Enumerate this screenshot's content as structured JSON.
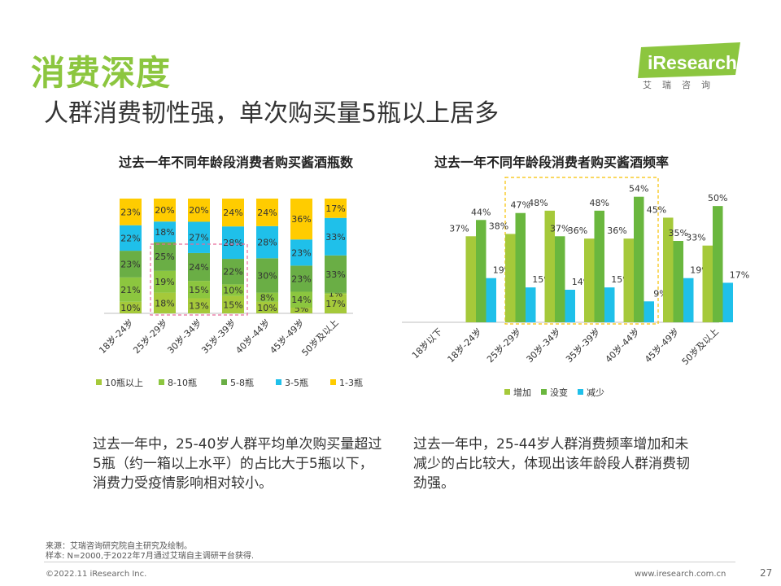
{
  "page": {
    "section_title": "消费深度",
    "headline": "人群消费韧性强，单次购买量5瓶以上居多",
    "logo_text": "iResearch",
    "logo_sub": "艾瑞咨询",
    "caption_left": "过去一年中，25-40岁人群平均单次购买量超过5瓶（约一箱以上水平）的占比大于5瓶以下，消费力受疫情影响相对较小。",
    "caption_right": "过去一年中，25-44岁人群消费频率增加和未减少的占比较大，体现出该年龄段人群消费韧劲强。",
    "source_line1": "来源：艾瑞咨询研究院自主研究及绘制。",
    "source_line2": "样本: N=2000,于2022年7月通过艾瑞自主调研平台获得.",
    "copyright": "©2022.11 iResearch Inc.",
    "website": "www.iresearch.com.cn",
    "page_number": "27"
  },
  "colors": {
    "accent": "#8cc63f",
    "s_10plus": "#a5c93a",
    "s_8_10": "#8cc63f",
    "s_5_8": "#6aae45",
    "s_3_5": "#1fc0ea",
    "s_1_3": "#ffcc00",
    "increase": "#a5c93a",
    "unchanged": "#6ab73e",
    "decrease": "#1fc0ea",
    "highlight": "#e86a9a",
    "highlight2": "#f6c000"
  },
  "chart_data": [
    {
      "type": "bar",
      "stacked": true,
      "percent_stacked": true,
      "title": "过去一年不同年龄段消费者购买酱酒瓶数",
      "categories": [
        "18岁-24岁",
        "25岁-29岁",
        "30岁-34岁",
        "35岁-39岁",
        "40岁-44岁",
        "45岁-49岁",
        "50岁及以上"
      ],
      "series": [
        {
          "name": "10瓶以上",
          "color_key": "s_10plus",
          "values": [
            10,
            18,
            13,
            15,
            10,
            5,
            17
          ]
        },
        {
          "name": "8-10瓶",
          "color_key": "s_8_10",
          "values": [
            21,
            19,
            15,
            10,
            8,
            14,
            1
          ]
        },
        {
          "name": "5-8瓶",
          "color_key": "s_5_8",
          "values": [
            23,
            25,
            24,
            22,
            30,
            23,
            33
          ]
        },
        {
          "name": "3-5瓶",
          "color_key": "s_3_5",
          "values": [
            22,
            18,
            27,
            28,
            28,
            23,
            33
          ]
        },
        {
          "name": "1-3瓶",
          "color_key": "s_1_3",
          "values": [
            23,
            20,
            20,
            24,
            24,
            36,
            17
          ]
        }
      ],
      "value_suffix": "%",
      "highlight": {
        "categories": [
          "25岁-29岁",
          "35岁-39岁"
        ],
        "series": [
          "10瓶以上",
          "5-8瓶"
        ]
      },
      "legend_position": "bottom"
    },
    {
      "type": "bar",
      "stacked": false,
      "title": "过去一年不同年龄段消费者购买酱酒频率",
      "categories": [
        "18岁以下",
        "18岁-24岁",
        "25岁-29岁",
        "30岁-34岁",
        "35岁-39岁",
        "40岁-44岁",
        "45岁-49岁",
        "50岁及以上"
      ],
      "series": [
        {
          "name": "增加",
          "color_key": "increase",
          "values": [
            null,
            37,
            38,
            48,
            36,
            36,
            45,
            33
          ]
        },
        {
          "name": "没变",
          "color_key": "unchanged",
          "values": [
            null,
            44,
            47,
            37,
            48,
            54,
            35,
            50
          ]
        },
        {
          "name": "减少",
          "color_key": "decrease",
          "values": [
            null,
            19,
            15,
            14,
            15,
            9,
            19,
            17
          ]
        }
      ],
      "value_suffix": "%",
      "ylim": [
        0,
        56
      ],
      "highlight": {
        "categories": [
          "25岁-29岁",
          "40岁-44岁"
        ]
      },
      "legend_position": "bottom"
    }
  ]
}
